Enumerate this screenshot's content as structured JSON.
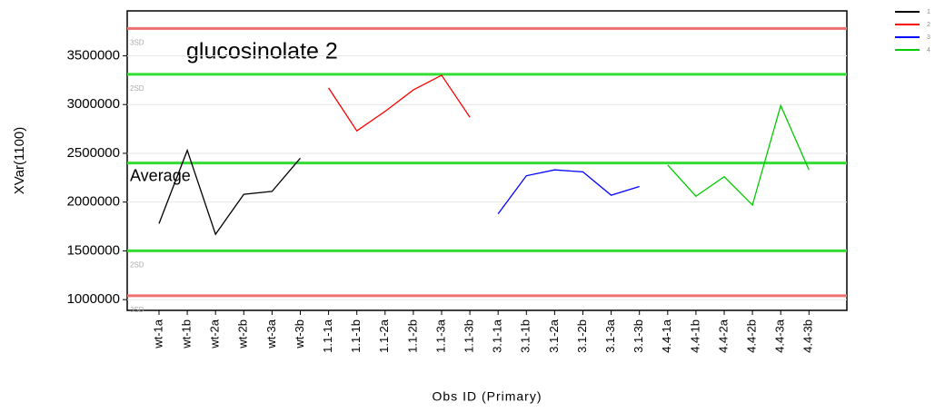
{
  "chart_data": {
    "type": "line",
    "title": "glucosinolate 2",
    "x_label": "Obs ID (Primary)",
    "y_label": "XVar(1100)",
    "categories": [
      "wt-1a",
      "wt-1b",
      "wt-2a",
      "wt-2b",
      "wt-3a",
      "wt-3b",
      "1.1-1a",
      "1.1-1b",
      "1.1-2a",
      "1.1-2b",
      "1.1-3a",
      "1.1-3b",
      "3.1-1a",
      "3.1-1b",
      "3.1-2a",
      "3.1-2b",
      "3.1-3a",
      "3.1-3b",
      "4.4-1a",
      "4.4-1b",
      "4.4-2a",
      "4.4-2b",
      "4.4-3a",
      "4.4-3b"
    ],
    "series": [
      {
        "name": "1",
        "color": "#000000",
        "values": [
          1780000,
          2530000,
          1670000,
          2080000,
          2110000,
          2450000,
          null,
          null,
          null,
          null,
          null,
          null,
          null,
          null,
          null,
          null,
          null,
          null,
          null,
          null,
          null,
          null,
          null,
          null
        ]
      },
      {
        "name": "2",
        "color": "#ff0000",
        "values": [
          null,
          null,
          null,
          null,
          null,
          null,
          3170000,
          2730000,
          2930000,
          3150000,
          3300000,
          2870000,
          null,
          null,
          null,
          null,
          null,
          null,
          null,
          null,
          null,
          null,
          null,
          null
        ]
      },
      {
        "name": "3",
        "color": "#0000ff",
        "values": [
          null,
          null,
          null,
          null,
          null,
          null,
          null,
          null,
          null,
          null,
          null,
          null,
          1880000,
          2270000,
          2330000,
          2310000,
          2070000,
          2160000,
          null,
          null,
          null,
          null,
          null,
          null
        ]
      },
      {
        "name": "4",
        "color": "#00cc00",
        "values": [
          null,
          null,
          null,
          null,
          null,
          null,
          null,
          null,
          null,
          null,
          null,
          null,
          null,
          null,
          null,
          null,
          null,
          null,
          2380000,
          2060000,
          2260000,
          1970000,
          2990000,
          2330000
        ]
      }
    ],
    "reference_lines": [
      {
        "value": 3780000,
        "color": "#f07070",
        "label": "3SD"
      },
      {
        "value": 3310000,
        "color": "#33dd33",
        "label": "2SD"
      },
      {
        "value": 2400000,
        "color": "#33dd33",
        "label": "Average"
      },
      {
        "value": 1500000,
        "color": "#33dd33",
        "label": "2SD"
      },
      {
        "value": 1040000,
        "color": "#f07070",
        "label": "3SD"
      }
    ],
    "ylim": [
      890000,
      3960000
    ],
    "yticks": [
      1000000,
      1500000,
      2000000,
      2500000,
      3000000,
      3500000
    ],
    "grid": true,
    "legend_position": "top-right"
  }
}
